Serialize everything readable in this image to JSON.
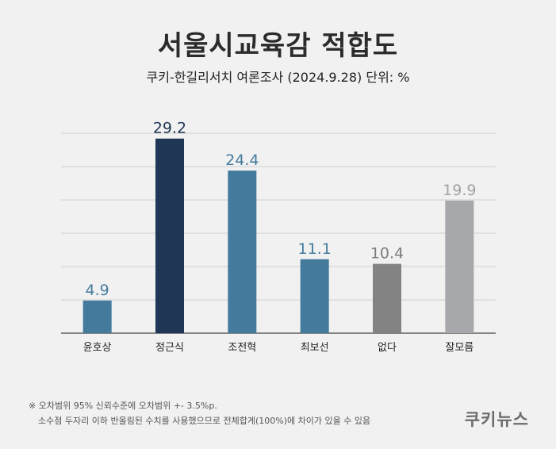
{
  "header": {
    "title": "서울시교육감 적합도",
    "subtitle": "쿠키-한길리서치 여론조사 (2024.9.28) 단위: %"
  },
  "chart_data": {
    "type": "bar",
    "categories": [
      "윤호상",
      "정근식",
      "조전혁",
      "최보선",
      "없다",
      "잘모름"
    ],
    "values": [
      4.9,
      29.2,
      24.4,
      11.1,
      10.4,
      19.9
    ],
    "bar_colors": [
      "#447b9d",
      "#1f3654",
      "#447b9d",
      "#447b9d",
      "#838383",
      "#a7a8ac"
    ],
    "label_colors": [
      "#447b9d",
      "#1f3654",
      "#447b9d",
      "#447b9d",
      "#7d7d7d",
      "#a0a1a5"
    ],
    "ylim": [
      0,
      30
    ],
    "grid": true
  },
  "footnote": {
    "line1": "※ 오차범위 95% 신뢰수준에 오차범위 +- 3.5%p.",
    "line2": "소수점 두자리 이하 반올림된 수치를 사용했으므로 전체합계(100%)에 차이가 있을 수 있음"
  },
  "brand": "쿠키뉴스"
}
